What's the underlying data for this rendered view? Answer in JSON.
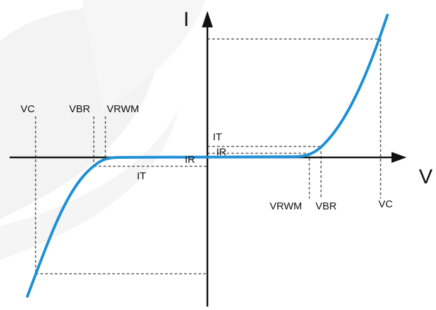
{
  "axes": {
    "x_label": "V",
    "y_label": "I"
  },
  "labels": {
    "vc_left": "VC",
    "vbr_left": "VBR",
    "vrwm_left": "VRWM",
    "it_left": "IT",
    "ir_left": "IR",
    "it_right": "IT",
    "ir_right": "IR",
    "vrwm_right": "VRWM",
    "vbr_right": "VBR",
    "vc_right": "VC"
  },
  "colors": {
    "curve": "#1e90d6",
    "axis": "#111111",
    "watermark": "#f2f2f2"
  }
}
